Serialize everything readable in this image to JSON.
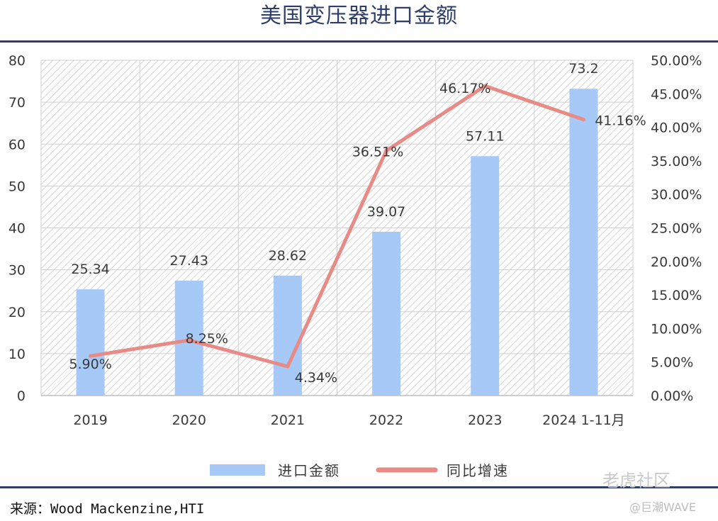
{
  "header": {
    "title": "美国变压器进口金额"
  },
  "source": "来源：Wood Mackenzine,HTI",
  "watermark": {
    "main": "老虎社区",
    "sub": "@巨潮WAVE"
  },
  "chart_data": {
    "type": "bar",
    "categories": [
      "2019",
      "2020",
      "2021",
      "2022",
      "2023",
      "2024 1-11月"
    ],
    "series": [
      {
        "name": "进口金额",
        "type": "bar",
        "axis": "left",
        "color": "#a6c9f7",
        "values": [
          25.34,
          27.43,
          28.62,
          39.07,
          57.11,
          73.2
        ],
        "labels": [
          "25.34",
          "27.43",
          "28.62",
          "39.07",
          "57.11",
          "73.2"
        ]
      },
      {
        "name": "同比增速",
        "type": "line",
        "axis": "right",
        "color": "#e88a86",
        "values": [
          5.9,
          8.25,
          4.34,
          36.51,
          46.17,
          41.16
        ],
        "labels": [
          "5.90%",
          "8.25%",
          "4.34%",
          "36.51%",
          "46.17%",
          "41.16%"
        ]
      }
    ],
    "y_left": {
      "min": 0,
      "max": 80,
      "step": 10,
      "ticks": [
        "0",
        "10",
        "20",
        "30",
        "40",
        "50",
        "60",
        "70",
        "80"
      ]
    },
    "y_right": {
      "min": 0,
      "max": 50,
      "step": 5,
      "ticks": [
        "0.00%",
        "5.00%",
        "10.00%",
        "15.00%",
        "20.00%",
        "25.00%",
        "30.00%",
        "35.00%",
        "40.00%",
        "45.00%",
        "50.00%"
      ]
    },
    "grid": true,
    "legend_position": "bottom"
  }
}
